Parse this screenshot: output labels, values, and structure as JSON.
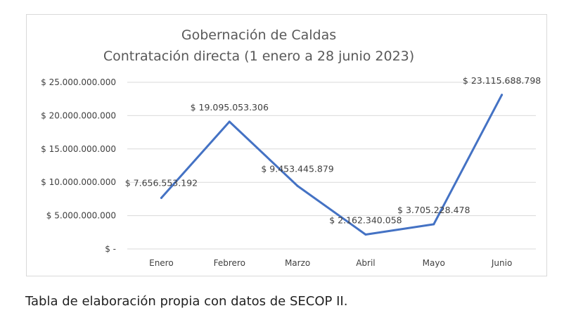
{
  "chart_data": {
    "type": "line",
    "title": [
      "Gobernación de Caldas",
      "Contratación directa (1 enero a 28 junio 2023)"
    ],
    "categories": [
      "Enero",
      "Febrero",
      "Marzo",
      "Abril",
      "Mayo",
      "Junio"
    ],
    "series": [
      {
        "values": [
          7656553192,
          19095053306,
          9453445879,
          2162340058,
          3705228478,
          23115688798
        ],
        "data_labels": [
          "$ 7.656.553.192",
          "$ 19.095.053.306",
          "$ 9.453.445.879",
          "$ 2.162.340.058",
          "$ 3.705.228.478",
          "$ 23.115.688.798"
        ],
        "color": "#4472c4"
      }
    ],
    "ylim": [
      0,
      25000000000
    ],
    "yticks": [
      0,
      5000000000,
      10000000000,
      15000000000,
      20000000000,
      25000000000
    ],
    "ytick_labels": [
      "$ -",
      "$ 5.000.000.000",
      "$ 10.000.000.000",
      "$ 15.000.000.000",
      "$ 20.000.000.000",
      "$ 25.000.000.000"
    ],
    "grid": true,
    "legend": "none"
  },
  "caption": "Tabla de elaboración propia con datos de SECOP II."
}
